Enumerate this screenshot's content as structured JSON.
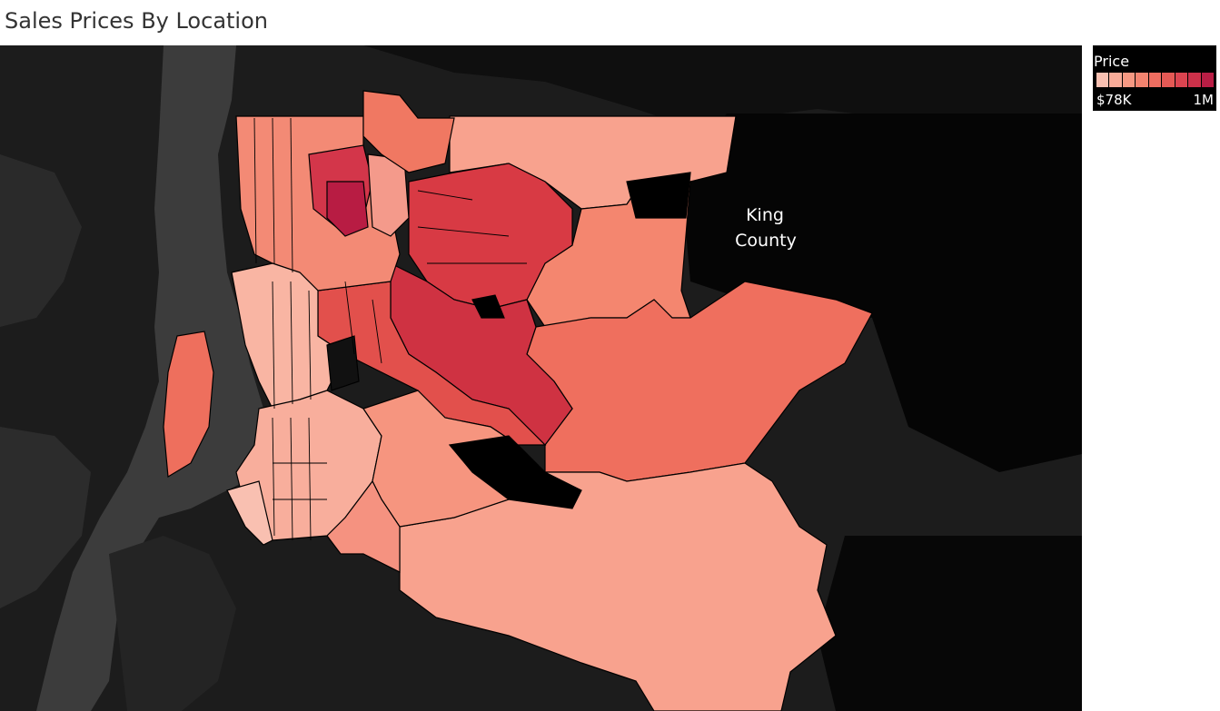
{
  "title": "Sales Prices By Location",
  "map": {
    "type": "choropleth",
    "region_label_line1": "King",
    "region_label_line2": "County",
    "colors": {
      "background": "#1a1a1a",
      "land_dark": "#2b2b2b",
      "water": "#3a3a3a",
      "boundary": "#000000"
    }
  },
  "legend": {
    "title": "Price",
    "min_label": "$78K",
    "max_label": "1M",
    "steps": [
      "#f9c0b1",
      "#f8ab98",
      "#f69882",
      "#f3836f",
      "#ee6d60",
      "#e65955",
      "#dc4450",
      "#cd314a",
      "#b91e45"
    ]
  }
}
